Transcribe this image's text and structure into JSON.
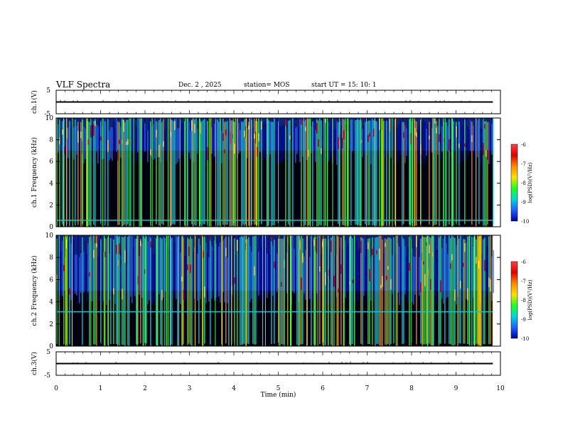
{
  "header": {
    "title": "VLF Spectra",
    "date": "Dec. 2 , 2025",
    "station": "station= MOS",
    "start_ut": "start UT = 15: 10: 1"
  },
  "chart_data": [
    {
      "type": "line",
      "panel": "ch1-voltage",
      "ylabel": "ch.1(V)",
      "ylim": [
        -5,
        5
      ],
      "ytick_labels": [
        "5",
        "-5"
      ],
      "series": [
        {
          "values": [
            0,
            0,
            0,
            0,
            0,
            0,
            0,
            0,
            0,
            0,
            0
          ]
        }
      ],
      "x": [
        0,
        1,
        2,
        3,
        4,
        5,
        6,
        7,
        8,
        9,
        9.83
      ]
    },
    {
      "type": "heatmap",
      "panel": "ch1-spectrogram",
      "ylabel": "ch.1 Frequency (kHz)",
      "ylim": [
        0,
        10
      ],
      "ytick_labels": [
        "0",
        "2",
        "4",
        "6",
        "8",
        "10"
      ],
      "xlim": [
        0,
        9.83
      ],
      "colorbar": {
        "label": "log(PSD)(V²/Hz)",
        "range": [
          -10,
          -6
        ],
        "tick_labels": [
          "-6",
          "-7",
          "-8",
          "-9",
          "-10"
        ],
        "colors": [
          "#ff4040",
          "#e00000",
          "#ff8a00",
          "#ffe000",
          "#20ff20",
          "#00d8d8",
          "#2060ff",
          "#0000a0"
        ]
      },
      "band_kHz": [
        7,
        10
      ],
      "tone_line_kHz": 0.6
    },
    {
      "type": "heatmap",
      "panel": "ch2-spectrogram",
      "ylabel": "ch.2 Frequency (kHz)",
      "ylim": [
        0,
        10
      ],
      "ytick_labels": [
        "0",
        "2",
        "4",
        "6",
        "8",
        "10"
      ],
      "xlim": [
        0,
        9.83
      ],
      "colorbar": {
        "label": "log(PSD)(V²/Hz)",
        "range": [
          -10,
          -6
        ],
        "tick_labels": [
          "-6",
          "-7",
          "-8",
          "-9",
          "-10"
        ],
        "colors": [
          "#ff4040",
          "#e00000",
          "#ff8a00",
          "#ffe000",
          "#20ff20",
          "#00d8d8",
          "#2060ff",
          "#0000a0"
        ]
      },
      "band_kHz": [
        5,
        10
      ],
      "tone_line_kHz": 3.1
    },
    {
      "type": "line",
      "panel": "ch3-voltage",
      "ylabel": "ch.3(V)",
      "ylim": [
        -5,
        5
      ],
      "ytick_labels": [
        "5",
        "-5"
      ],
      "series": [
        {
          "values": [
            0,
            0,
            0,
            0,
            0,
            0,
            0,
            0,
            0,
            0,
            0
          ]
        }
      ],
      "x": [
        0,
        1,
        2,
        3,
        4,
        5,
        6,
        7,
        8,
        9,
        9.83
      ]
    }
  ],
  "xaxis": {
    "label": "Time (min)",
    "xlim": [
      0,
      10
    ],
    "tick_labels": [
      "0",
      "1",
      "2",
      "3",
      "4",
      "5",
      "6",
      "7",
      "8",
      "9",
      "10"
    ]
  }
}
